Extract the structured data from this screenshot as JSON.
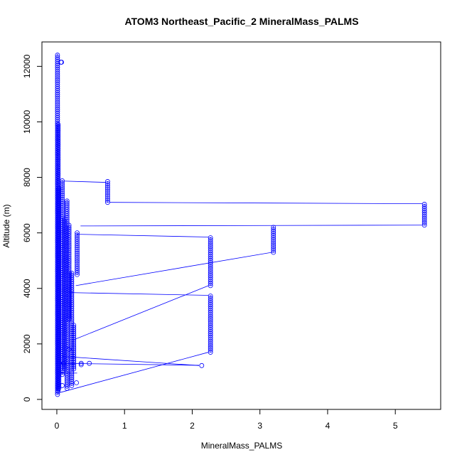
{
  "chart_data": {
    "type": "scatter",
    "title": "ATOM3 Northeast_Pacific_2 MineralMass_PALMS",
    "xlabel": "MineralMass_PALMS",
    "ylabel": "Altitude (m)",
    "xlim": [
      -0.22,
      5.67
    ],
    "ylim": [
      -360,
      12880
    ],
    "x_ticks": [
      0,
      1,
      2,
      3,
      4,
      5
    ],
    "x_tick_labels": [
      "0",
      "1",
      "2",
      "3",
      "4",
      "5"
    ],
    "y_ticks": [
      0,
      2000,
      4000,
      6000,
      8000,
      10000,
      12000
    ],
    "y_tick_labels": [
      "0",
      "2000",
      "4000",
      "6000",
      "8000",
      "10000",
      "12000"
    ],
    "color": "#0000ff",
    "marker": "open-circle",
    "connected": true,
    "grid": false,
    "series": [
      {
        "segments": [
          {
            "x": 0.01,
            "y0": 180,
            "y1": 12450
          },
          {
            "x": 0.02,
            "y0": 300,
            "y1": 9900
          },
          {
            "x": 0.03,
            "y0": 400,
            "y1": 7600
          },
          {
            "x": 0.08,
            "y0": 900,
            "y1": 7900
          },
          {
            "x": 0.12,
            "y0": 1100,
            "y1": 6500
          },
          {
            "x": 0.15,
            "y0": 400,
            "y1": 7200
          },
          {
            "x": 0.18,
            "y0": 2900,
            "y1": 6300
          },
          {
            "x": 0.22,
            "y0": 500,
            "y1": 4600
          },
          {
            "x": 0.25,
            "y0": 1100,
            "y1": 2700
          },
          {
            "x": 0.3,
            "y0": 4500,
            "y1": 6000
          },
          {
            "x": 0.75,
            "y0": 7100,
            "y1": 7850
          },
          {
            "x": 2.27,
            "y0": 4100,
            "y1": 5850
          },
          {
            "x": 2.27,
            "y0": 1700,
            "y1": 3750
          },
          {
            "x": 3.2,
            "y0": 5300,
            "y1": 6250
          },
          {
            "x": 5.43,
            "y0": 6280,
            "y1": 7050
          }
        ],
        "points": [
          {
            "x": 0.06,
            "y": 12150
          },
          {
            "x": 0.07,
            "y": 12150
          },
          {
            "x": 0.29,
            "y": 600
          },
          {
            "x": 0.36,
            "y": 1250
          },
          {
            "x": 0.36,
            "y": 1300
          },
          {
            "x": 0.48,
            "y": 1300
          },
          {
            "x": 2.14,
            "y": 1220
          },
          {
            "x": 0.08,
            "y": 500
          },
          {
            "x": 0.1,
            "y": 1300
          },
          {
            "x": 0.18,
            "y": 1800
          }
        ],
        "connectors": [
          {
            "x0": 0.05,
            "y0": 7870,
            "x1": 0.72,
            "y1": 7820
          },
          {
            "x0": 0.78,
            "y0": 7100,
            "x1": 5.4,
            "y1": 7050
          },
          {
            "x0": 0.3,
            "y0": 5950,
            "x1": 2.24,
            "y1": 5850
          },
          {
            "x0": 0.28,
            "y0": 4100,
            "x1": 3.18,
            "y1": 5300
          },
          {
            "x0": 0.35,
            "y0": 6250,
            "x1": 5.4,
            "y1": 6280
          },
          {
            "x0": 0.18,
            "y0": 3850,
            "x1": 2.24,
            "y1": 3750
          },
          {
            "x0": 0.25,
            "y0": 2150,
            "x1": 2.24,
            "y1": 4100
          },
          {
            "x0": 0.08,
            "y0": 1550,
            "x1": 2.1,
            "y1": 1220
          },
          {
            "x0": 0.05,
            "y0": 1300,
            "x1": 2.1,
            "y1": 1230
          },
          {
            "x0": 0.05,
            "y0": 250,
            "x1": 2.24,
            "y1": 1700
          },
          {
            "x0": 0.05,
            "y0": 950,
            "x1": 0.3,
            "y1": 950
          }
        ]
      }
    ]
  }
}
